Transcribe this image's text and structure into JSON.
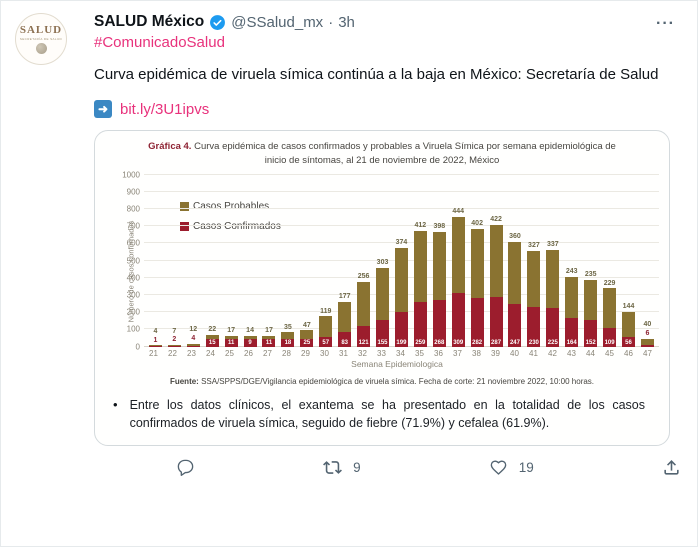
{
  "colors": {
    "accent_pink": "#e8327c",
    "verified_blue": "#1d9bf0",
    "probables": "#8a7331",
    "confirmados": "#9c1d2d",
    "link_icon_blue": "#3b88c3"
  },
  "header": {
    "avatar_title": "SALUD",
    "avatar_subtitle": "SECRETARÍA DE SALUD",
    "display_name": "SALUD México",
    "handle": "@SSalud_mx",
    "separator": "·",
    "timestamp": "3h",
    "more_label": "···",
    "hashtag": "#ComunicadoSalud"
  },
  "tweet": {
    "text": "Curva epidémica de viruela símica continúa a la baja en México: Secretaría de Salud",
    "link_icon": "➜",
    "link_text": "bit.ly/3U1ipvs"
  },
  "chart_data": {
    "type": "bar",
    "stacked": true,
    "title_prefix": "Gráfica 4.",
    "title_rest": " Curva epidémica de casos confirmados y probables a Viruela Símica por semana epidemiológica de inicio de síntomas, al 21 de noviembre de 2022, México",
    "xlabel": "Semana Epidemiologica",
    "ylabel": "Número de casos confirmados",
    "ylim": [
      0,
      1000
    ],
    "ytick_step": 100,
    "grid": true,
    "legend_position": "top-left",
    "categories": [
      21,
      22,
      23,
      24,
      25,
      26,
      27,
      28,
      29,
      30,
      31,
      32,
      33,
      34,
      35,
      36,
      37,
      38,
      39,
      40,
      41,
      42,
      43,
      44,
      45,
      46,
      47
    ],
    "series": [
      {
        "name": "Casos Probables",
        "color": "#8a7331",
        "values": [
          4,
          7,
          12,
          22,
          17,
          14,
          17,
          35,
          47,
          119,
          177,
          256,
          303,
          374,
          412,
          398,
          444,
          402,
          422,
          360,
          327,
          337,
          243,
          235,
          229,
          144,
          40
        ]
      },
      {
        "name": "Casos Confirmados",
        "color": "#9c1d2d",
        "values": [
          1,
          2,
          4,
          15,
          11,
          9,
          11,
          18,
          25,
          57,
          83,
          121,
          155,
          199,
          259,
          268,
          309,
          282,
          287,
          247,
          230,
          225,
          164,
          152,
          109,
          56,
          6
        ]
      }
    ],
    "source_prefix": "Fuente:",
    "source_text": " SSA/SPPS/DGE/Vigilancia epidemiológica de viruela símica. Fecha de corte: 21 noviembre 2022, 10:00 horas."
  },
  "note": {
    "bullet": "•",
    "text": "Entre los datos clínicos, el exantema se ha presentado en la totalidad de los casos confirmados de viruela símica, seguido de fiebre (71.9%) y cefalea (61.9%)."
  },
  "actions": {
    "retweet_count": "9",
    "like_count": "19"
  }
}
